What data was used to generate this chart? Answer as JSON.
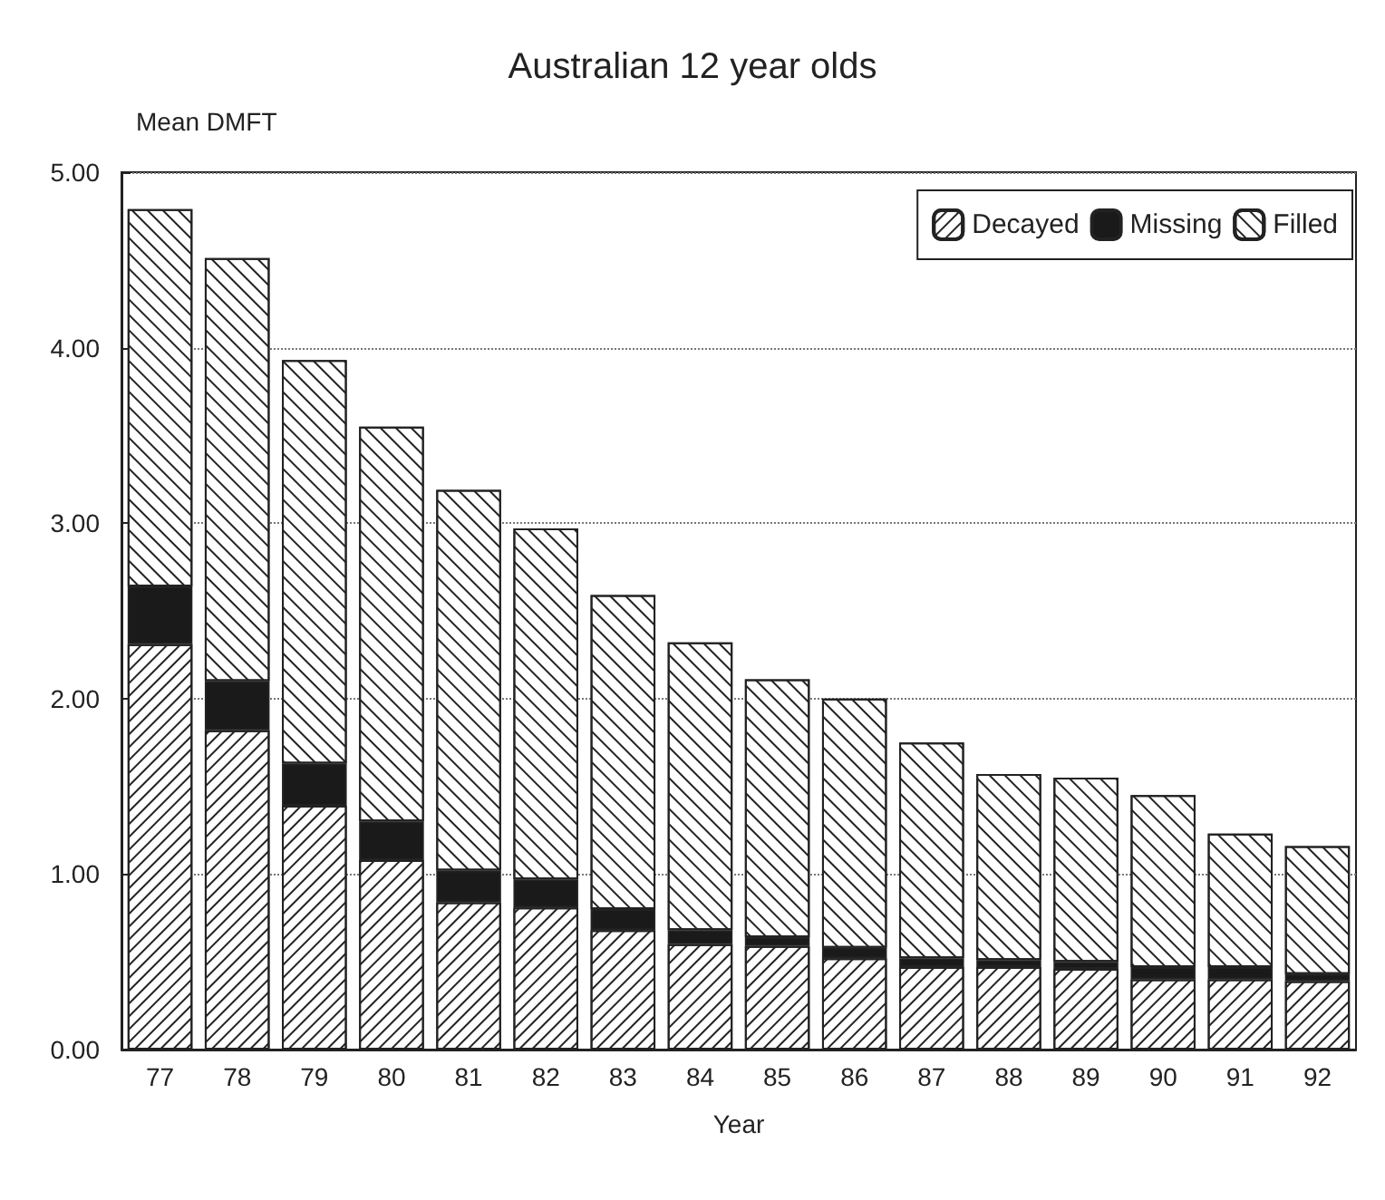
{
  "chart_data": {
    "type": "bar",
    "title": "Australian 12 year olds",
    "ylabel": "Mean DMFT",
    "xlabel": "Year",
    "stacked": true,
    "categories": [
      "77",
      "78",
      "79",
      "80",
      "81",
      "82",
      "83",
      "84",
      "85",
      "86",
      "87",
      "88",
      "89",
      "90",
      "91",
      "92"
    ],
    "series": [
      {
        "name": "Decayed",
        "color": "#ffffff",
        "values": [
          2.31,
          1.82,
          1.39,
          1.08,
          0.84,
          0.81,
          0.68,
          0.6,
          0.59,
          0.52,
          0.47,
          0.47,
          0.46,
          0.4,
          0.4,
          0.39
        ]
      },
      {
        "name": "Missing",
        "color": "#1a1a1a",
        "values": [
          0.33,
          0.28,
          0.24,
          0.22,
          0.18,
          0.16,
          0.12,
          0.08,
          0.05,
          0.06,
          0.05,
          0.04,
          0.04,
          0.07,
          0.07,
          0.04
        ]
      },
      {
        "name": "Filled",
        "color": "#ffffff",
        "values": [
          2.15,
          2.41,
          2.3,
          2.25,
          2.17,
          2,
          1.79,
          1.64,
          1.47,
          1.42,
          1.23,
          1.06,
          1.05,
          0.98,
          0.76,
          0.73
        ]
      }
    ],
    "ylim": [
      0,
      5
    ],
    "yticks": [
      {
        "value": 0,
        "label": "0.00"
      },
      {
        "value": 1,
        "label": "1.00"
      },
      {
        "value": 2,
        "label": "2.00"
      },
      {
        "value": 3,
        "label": "3.00"
      },
      {
        "value": 4,
        "label": "4.00"
      },
      {
        "value": 5,
        "label": "5.00"
      }
    ],
    "grid": "y",
    "legend": "top right"
  }
}
